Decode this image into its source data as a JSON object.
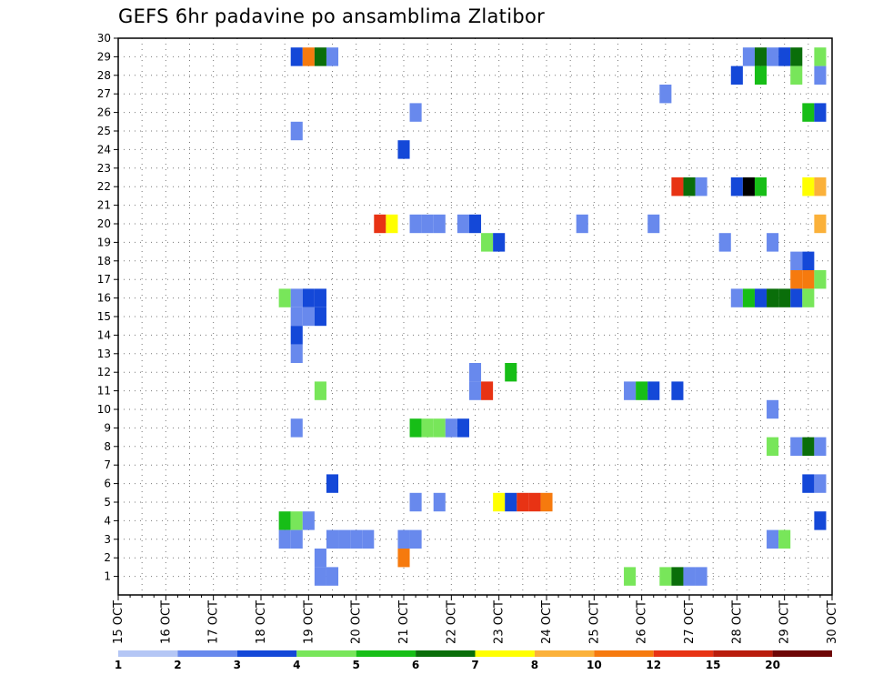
{
  "chart_data": {
    "type": "heatmap",
    "title": "GEFS 6hr padavine po ansamblima Zlatibor",
    "xlabel": "",
    "ylabel": "",
    "x_tick_labels": [
      "15 OCT",
      "16 OCT",
      "17 OCT",
      "18 OCT",
      "19 OCT",
      "20 OCT",
      "21 OCT",
      "22 OCT",
      "23 OCT",
      "24 OCT",
      "25 OCT",
      "26 OCT",
      "27 OCT",
      "28 OCT",
      "29 OCT",
      "30 OCT"
    ],
    "y_range": [
      0,
      30
    ],
    "y_tick_labels": [
      "1",
      "2",
      "3",
      "4",
      "5",
      "6",
      "7",
      "8",
      "9",
      "10",
      "11",
      "12",
      "13",
      "14",
      "15",
      "16",
      "17",
      "18",
      "19",
      "20",
      "21",
      "22",
      "23",
      "24",
      "25",
      "26",
      "27",
      "28",
      "29",
      "30"
    ],
    "x_step_hours": 6,
    "grid": true,
    "legend": {
      "placement": "bottom",
      "labels": [
        "1",
        "2",
        "3",
        "4",
        "5",
        "6",
        "7",
        "8",
        "10",
        "12",
        "15",
        "20"
      ],
      "colors": [
        "#b4c6f5",
        "#6889ed",
        "#1448d8",
        "#78e65a",
        "#17be17",
        "#0a6e0a",
        "#ffff00",
        "#fbb13a",
        "#f67a0e",
        "#e83314",
        "#b91c0c",
        "#6e0606"
      ]
    },
    "cells": [
      [
        18.75,
        29,
        2
      ],
      [
        19,
        29,
        8
      ],
      [
        19.25,
        29,
        5
      ],
      [
        19.5,
        29,
        1
      ],
      [
        28.25,
        29,
        1
      ],
      [
        28.5,
        29,
        5
      ],
      [
        28.75,
        29,
        1
      ],
      [
        29,
        29,
        2
      ],
      [
        29.25,
        29,
        5
      ],
      [
        29.75,
        29,
        3
      ],
      [
        28,
        28,
        2
      ],
      [
        28.5,
        28,
        4
      ],
      [
        29.25,
        28,
        3
      ],
      [
        29.75,
        28,
        1
      ],
      [
        26.5,
        27,
        1
      ],
      [
        21.25,
        26,
        1
      ],
      [
        29.5,
        26,
        4
      ],
      [
        29.75,
        26,
        2
      ],
      [
        18.75,
        25,
        1
      ],
      [
        21,
        24,
        2
      ],
      [
        26.75,
        22,
        9
      ],
      [
        27,
        22,
        5
      ],
      [
        27.25,
        22,
        1
      ],
      [
        28,
        22,
        2
      ],
      [
        28.25,
        22,
        12
      ],
      [
        28.5,
        22,
        4
      ],
      [
        29.5,
        22,
        6
      ],
      [
        29.75,
        22,
        7
      ],
      [
        20.5,
        20,
        9
      ],
      [
        20.75,
        20,
        6
      ],
      [
        21.25,
        20,
        1
      ],
      [
        21.5,
        20,
        1
      ],
      [
        21.75,
        20,
        1
      ],
      [
        22.25,
        20,
        1
      ],
      [
        22.5,
        20,
        2
      ],
      [
        24.75,
        20,
        1
      ],
      [
        26.25,
        20,
        1
      ],
      [
        29.75,
        20,
        7
      ],
      [
        22.75,
        19,
        3
      ],
      [
        23,
        19,
        2
      ],
      [
        27.75,
        19,
        1
      ],
      [
        28.75,
        19,
        1
      ],
      [
        29.25,
        18,
        1
      ],
      [
        29.5,
        18,
        2
      ],
      [
        29.25,
        17,
        8
      ],
      [
        29.5,
        17,
        8
      ],
      [
        29.75,
        17,
        3
      ],
      [
        18.5,
        16,
        3
      ],
      [
        18.75,
        16,
        1
      ],
      [
        19,
        16,
        2
      ],
      [
        19.25,
        16,
        2
      ],
      [
        28,
        16,
        1
      ],
      [
        28.25,
        16,
        4
      ],
      [
        28.5,
        16,
        2
      ],
      [
        28.75,
        16,
        5
      ],
      [
        29,
        16,
        5
      ],
      [
        29.25,
        16,
        2
      ],
      [
        29.5,
        16,
        3
      ],
      [
        18.75,
        15,
        1
      ],
      [
        19,
        15,
        1
      ],
      [
        19.25,
        15,
        2
      ],
      [
        18.75,
        14,
        2
      ],
      [
        18.75,
        13,
        1
      ],
      [
        22.5,
        12,
        1
      ],
      [
        23.25,
        12,
        4
      ],
      [
        19.25,
        11,
        3
      ],
      [
        22.5,
        11,
        1
      ],
      [
        22.75,
        11,
        9
      ],
      [
        25.75,
        11,
        1
      ],
      [
        26,
        11,
        4
      ],
      [
        26.25,
        11,
        2
      ],
      [
        26.75,
        11,
        2
      ],
      [
        28.75,
        10,
        1
      ],
      [
        18.75,
        9,
        1
      ],
      [
        21.25,
        9,
        4
      ],
      [
        21.5,
        9,
        3
      ],
      [
        21.75,
        9,
        3
      ],
      [
        22,
        9,
        1
      ],
      [
        22.25,
        9,
        2
      ],
      [
        28.75,
        8,
        3
      ],
      [
        29.25,
        8,
        1
      ],
      [
        29.5,
        8,
        5
      ],
      [
        29.75,
        8,
        1
      ],
      [
        19.5,
        6,
        2
      ],
      [
        29.5,
        6,
        2
      ],
      [
        29.75,
        6,
        1
      ],
      [
        21.25,
        5,
        1
      ],
      [
        21.75,
        5,
        1
      ],
      [
        23,
        5,
        6
      ],
      [
        23.25,
        5,
        2
      ],
      [
        23.5,
        5,
        9
      ],
      [
        23.75,
        5,
        9
      ],
      [
        24,
        5,
        8
      ],
      [
        18.5,
        4,
        4
      ],
      [
        18.75,
        4,
        3
      ],
      [
        19,
        4,
        1
      ],
      [
        29.75,
        4,
        2
      ],
      [
        18.5,
        3,
        1
      ],
      [
        18.75,
        3,
        1
      ],
      [
        19.5,
        3,
        1
      ],
      [
        19.75,
        3,
        1
      ],
      [
        20,
        3,
        1
      ],
      [
        20.25,
        3,
        1
      ],
      [
        21,
        3,
        1
      ],
      [
        21.25,
        3,
        1
      ],
      [
        28.75,
        3,
        1
      ],
      [
        29,
        3,
        3
      ],
      [
        19.25,
        2,
        1
      ],
      [
        21,
        2,
        8
      ],
      [
        19.25,
        1,
        1
      ],
      [
        19.5,
        1,
        1
      ],
      [
        25.75,
        1,
        3
      ],
      [
        26.5,
        1,
        3
      ],
      [
        26.75,
        1,
        5
      ],
      [
        27,
        1,
        1
      ],
      [
        27.25,
        1,
        1
      ]
    ]
  }
}
